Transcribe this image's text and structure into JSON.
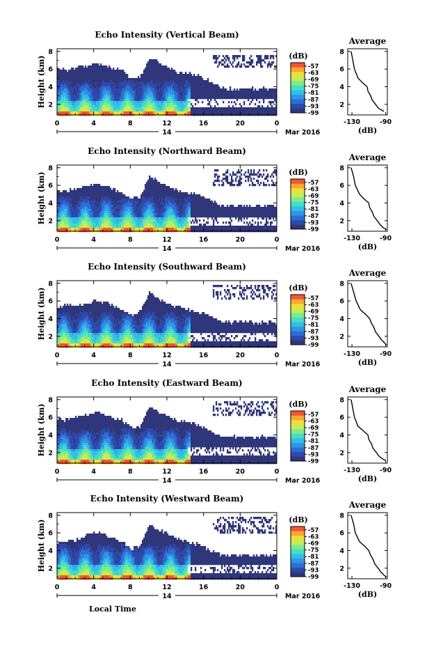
{
  "chart_data": {
    "type": "heatmap",
    "xlabel": "Local Time",
    "date_label": "14",
    "date_suffix": "Mar 2016",
    "ylabel": "Height (km)",
    "x_ticks": [
      "0",
      "4",
      "8",
      "12",
      "16",
      "20",
      "0"
    ],
    "xlim": [
      0,
      24
    ],
    "y_ticks": [
      "2",
      "4",
      "6",
      "8"
    ],
    "ylim": [
      0.8,
      8.3
    ],
    "colorbar": {
      "unit": "(dB)",
      "ticks": [
        "-57",
        "-63",
        "-69",
        "-75",
        "-81",
        "-87",
        "-93",
        "-99"
      ],
      "range": [
        -99,
        -54
      ],
      "colors": [
        "#30367a",
        "#2d4aa8",
        "#2f6dd3",
        "#2f95e6",
        "#34bde6",
        "#45ddc6",
        "#7ceb8d",
        "#c2ee58",
        "#f3de38",
        "#f7a836",
        "#f1582e"
      ]
    },
    "average_panel": {
      "title": "Average",
      "xlabel": "(dB)",
      "x_ticks": [
        "-130",
        "-90"
      ],
      "xlim": [
        -135,
        -88
      ],
      "y_ticks": [
        "2",
        "4",
        "6",
        "8"
      ],
      "ylim": [
        0.8,
        8.3
      ]
    },
    "panels": [
      {
        "title": "Echo Intensity (Vertical Beam)",
        "echo_top_km": [
          [
            0,
            6.2
          ],
          [
            1,
            6.0
          ],
          [
            2,
            6.3
          ],
          [
            3,
            6.5
          ],
          [
            4,
            6.8
          ],
          [
            5,
            6.6
          ],
          [
            6,
            6.2
          ],
          [
            7,
            6.0
          ],
          [
            8,
            5.0
          ],
          [
            9,
            5.2
          ],
          [
            10,
            7.4
          ],
          [
            11,
            6.9
          ],
          [
            12,
            6.4
          ],
          [
            13,
            5.8
          ],
          [
            14,
            5.7
          ],
          [
            15,
            5.5
          ],
          [
            16,
            5.1
          ],
          [
            17,
            4.5
          ],
          [
            18,
            3.9
          ],
          [
            24,
            3.9
          ]
        ],
        "clear_gap_km": [
          1.9,
          2.8
        ],
        "upper_patch_km": [
          6.3,
          7.8
        ],
        "average_profile": [
          [
            -131,
            8.0
          ],
          [
            -129,
            7.0
          ],
          [
            -127,
            6.0
          ],
          [
            -123,
            5.0
          ],
          [
            -118,
            4.5
          ],
          [
            -112,
            4.0
          ],
          [
            -111,
            3.5
          ],
          [
            -108,
            3.0
          ],
          [
            -106,
            2.5
          ],
          [
            -102,
            2.0
          ],
          [
            -99,
            1.6
          ],
          [
            -96,
            1.4
          ],
          [
            -92,
            1.2
          ]
        ]
      },
      {
        "title": "Echo Intensity (Northward Beam)",
        "echo_top_km": [
          [
            0,
            5.6
          ],
          [
            1,
            5.4
          ],
          [
            2,
            5.8
          ],
          [
            3,
            6.0
          ],
          [
            4,
            6.3
          ],
          [
            5,
            6.1
          ],
          [
            6,
            5.7
          ],
          [
            7,
            5.3
          ],
          [
            8,
            4.6
          ],
          [
            9,
            4.8
          ],
          [
            10,
            7.2
          ],
          [
            11,
            6.6
          ],
          [
            12,
            6.0
          ],
          [
            13,
            5.5
          ],
          [
            14,
            5.3
          ],
          [
            15,
            5.1
          ],
          [
            16,
            4.7
          ],
          [
            17,
            4.3
          ],
          [
            18,
            3.8
          ],
          [
            24,
            3.8
          ]
        ],
        "clear_gap_km": [
          1.6,
          2.6
        ],
        "upper_patch_km": [
          6.0,
          7.9
        ],
        "average_profile": [
          [
            -131,
            8.0
          ],
          [
            -128,
            7.0
          ],
          [
            -126,
            6.0
          ],
          [
            -121,
            5.0
          ],
          [
            -116,
            4.5
          ],
          [
            -110,
            4.0
          ],
          [
            -109,
            3.5
          ],
          [
            -106,
            3.0
          ],
          [
            -104,
            2.5
          ],
          [
            -100,
            2.0
          ],
          [
            -97,
            1.6
          ],
          [
            -93,
            1.2
          ],
          [
            -89,
            1.0
          ]
        ]
      },
      {
        "title": "Echo Intensity (Southward Beam)",
        "echo_top_km": [
          [
            0,
            5.4
          ],
          [
            1,
            5.6
          ],
          [
            2,
            5.5
          ],
          [
            3,
            5.8
          ],
          [
            4,
            6.1
          ],
          [
            5,
            6.0
          ],
          [
            6,
            5.6
          ],
          [
            7,
            5.2
          ],
          [
            8,
            4.4
          ],
          [
            9,
            4.9
          ],
          [
            10,
            7.1
          ],
          [
            11,
            6.4
          ],
          [
            12,
            5.8
          ],
          [
            13,
            5.4
          ],
          [
            14,
            5.2
          ],
          [
            15,
            5.0
          ],
          [
            16,
            4.6
          ],
          [
            17,
            4.2
          ],
          [
            18,
            3.7
          ],
          [
            24,
            3.7
          ]
        ],
        "clear_gap_km": [
          1.5,
          2.5
        ],
        "upper_patch_km": [
          6.2,
          7.9
        ],
        "average_profile": [
          [
            -131,
            8.0
          ],
          [
            -128,
            7.0
          ],
          [
            -125,
            6.0
          ],
          [
            -120,
            5.0
          ],
          [
            -114,
            4.5
          ],
          [
            -109,
            4.0
          ],
          [
            -107,
            3.5
          ],
          [
            -104,
            3.0
          ],
          [
            -102,
            2.5
          ],
          [
            -98,
            2.0
          ],
          [
            -95,
            1.6
          ],
          [
            -91,
            1.2
          ],
          [
            -89,
            1.0
          ]
        ]
      },
      {
        "title": "Echo Intensity (Eastward Beam)",
        "echo_top_km": [
          [
            0,
            6.0
          ],
          [
            1,
            5.8
          ],
          [
            2,
            6.1
          ],
          [
            3,
            6.4
          ],
          [
            4,
            6.7
          ],
          [
            5,
            6.5
          ],
          [
            6,
            6.0
          ],
          [
            7,
            5.8
          ],
          [
            8,
            4.9
          ],
          [
            9,
            5.1
          ],
          [
            10,
            7.3
          ],
          [
            11,
            6.8
          ],
          [
            12,
            6.2
          ],
          [
            13,
            5.7
          ],
          [
            14,
            5.6
          ],
          [
            15,
            5.3
          ],
          [
            16,
            4.9
          ],
          [
            17,
            4.4
          ],
          [
            18,
            3.9
          ],
          [
            24,
            3.9
          ]
        ],
        "clear_gap_km": [
          1.7,
          2.7
        ],
        "upper_patch_km": [
          6.2,
          7.9
        ],
        "average_profile": [
          [
            -131,
            8.0
          ],
          [
            -129,
            7.0
          ],
          [
            -127,
            6.0
          ],
          [
            -123,
            5.0
          ],
          [
            -117,
            4.5
          ],
          [
            -111,
            4.0
          ],
          [
            -110,
            3.5
          ],
          [
            -107,
            3.0
          ],
          [
            -105,
            2.5
          ],
          [
            -101,
            2.0
          ],
          [
            -98,
            1.6
          ],
          [
            -94,
            1.3
          ],
          [
            -90,
            1.1
          ]
        ]
      },
      {
        "title": "Echo Intensity (Westward Beam)",
        "echo_top_km": [
          [
            0,
            5.0
          ],
          [
            1,
            5.2
          ],
          [
            2,
            5.3
          ],
          [
            3,
            5.8
          ],
          [
            4,
            6.2
          ],
          [
            5,
            6.0
          ],
          [
            6,
            5.5
          ],
          [
            7,
            5.2
          ],
          [
            8,
            4.3
          ],
          [
            9,
            4.7
          ],
          [
            10,
            7.0
          ],
          [
            11,
            6.5
          ],
          [
            12,
            6.0
          ],
          [
            13,
            5.4
          ],
          [
            14,
            5.2
          ],
          [
            15,
            4.9
          ],
          [
            16,
            4.5
          ],
          [
            17,
            4.0
          ],
          [
            18,
            3.6
          ],
          [
            24,
            3.6
          ]
        ],
        "clear_gap_km": [
          1.6,
          2.5
        ],
        "upper_patch_km": [
          6.0,
          7.9
        ],
        "average_profile": [
          [
            -131,
            8.0
          ],
          [
            -128,
            7.0
          ],
          [
            -126,
            6.0
          ],
          [
            -121,
            5.0
          ],
          [
            -115,
            4.5
          ],
          [
            -110,
            4.0
          ],
          [
            -108,
            3.5
          ],
          [
            -105,
            3.0
          ],
          [
            -103,
            2.5
          ],
          [
            -99,
            2.0
          ],
          [
            -96,
            1.6
          ],
          [
            -92,
            1.2
          ],
          [
            -89,
            1.0
          ]
        ]
      }
    ]
  }
}
